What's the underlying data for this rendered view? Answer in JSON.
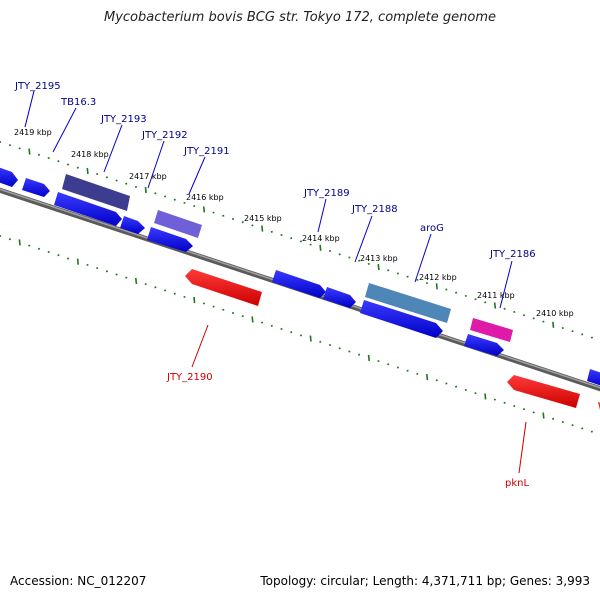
{
  "title": "Mycobacterium bovis BCG str. Tokyo 172, complete genome",
  "footer": {
    "accession": "Accession: NC_012207",
    "summary": "Topology: circular; Length: 4,371,711 bp; Genes: 3,993"
  },
  "colors": {
    "forward_gene": "#0000ee",
    "reverse_gene": "#ee0000",
    "forward_label": "#00008b",
    "reverse_label": "#cc0000",
    "tick": "#1a7a1a",
    "backbone": "#7a7a7a"
  },
  "kbp_labels": [
    "2419 kbp",
    "2418 kbp",
    "2417 kbp",
    "2416 kbp",
    "2415 kbp",
    "2414 kbp",
    "2413 kbp",
    "2412 kbp",
    "2411 kbp",
    "2410 kbp"
  ],
  "gene_labels": [
    {
      "name": "JTY_2195",
      "strand": "forward"
    },
    {
      "name": "TB16.3",
      "strand": "forward"
    },
    {
      "name": "JTY_2193",
      "strand": "forward"
    },
    {
      "name": "JTY_2192",
      "strand": "forward"
    },
    {
      "name": "JTY_2191",
      "strand": "forward"
    },
    {
      "name": "JTY_2189",
      "strand": "forward"
    },
    {
      "name": "JTY_2188",
      "strand": "forward"
    },
    {
      "name": "aroG",
      "strand": "forward"
    },
    {
      "name": "JTY_2186",
      "strand": "forward"
    },
    {
      "name": "JTY_2190",
      "strand": "reverse"
    },
    {
      "name": "pknL",
      "strand": "reverse"
    }
  ]
}
